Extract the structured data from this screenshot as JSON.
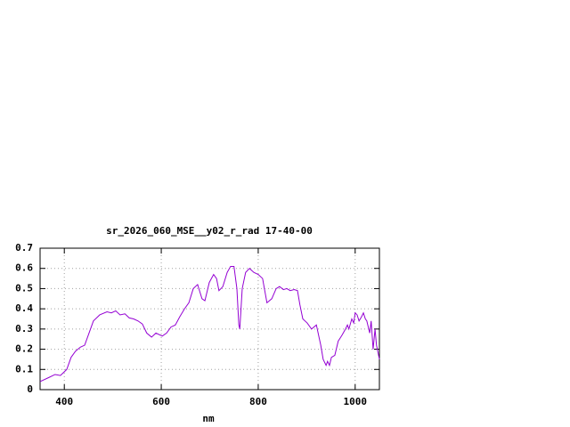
{
  "chart_data": {
    "type": "line",
    "title": "sr_2026_060_MSE__y02_r_rad 17-40-00",
    "x_label": "nm",
    "x": [
      350,
      368,
      381,
      392,
      405,
      414,
      423,
      433,
      442,
      451,
      460,
      473,
      488,
      497,
      506,
      515,
      525,
      534,
      543,
      552,
      561,
      570,
      580,
      589,
      602,
      611,
      620,
      629,
      638,
      648,
      657,
      666,
      675,
      684,
      690,
      699,
      708,
      714,
      719,
      727,
      736,
      743,
      750,
      756,
      760,
      762,
      767,
      774,
      782,
      791,
      800,
      809,
      818,
      828,
      837,
      844,
      852,
      859,
      866,
      874,
      881,
      886,
      892,
      901,
      910,
      920,
      929,
      934,
      940,
      943,
      947,
      951,
      958,
      965,
      973,
      980,
      984,
      987,
      993,
      997,
      1000,
      1004,
      1008,
      1013,
      1017,
      1021,
      1024,
      1030,
      1033,
      1037,
      1041,
      1044,
      1050
    ],
    "series": [
      {
        "color": "#9400d3",
        "values": [
          0.04,
          0.06,
          0.075,
          0.07,
          0.1,
          0.16,
          0.19,
          0.21,
          0.22,
          0.28,
          0.34,
          0.37,
          0.385,
          0.38,
          0.39,
          0.37,
          0.375,
          0.355,
          0.35,
          0.34,
          0.325,
          0.28,
          0.26,
          0.28,
          0.265,
          0.28,
          0.31,
          0.32,
          0.36,
          0.4,
          0.43,
          0.5,
          0.52,
          0.45,
          0.44,
          0.53,
          0.57,
          0.55,
          0.49,
          0.51,
          0.58,
          0.61,
          0.61,
          0.5,
          0.32,
          0.3,
          0.5,
          0.58,
          0.6,
          0.58,
          0.57,
          0.55,
          0.43,
          0.45,
          0.5,
          0.51,
          0.495,
          0.5,
          0.49,
          0.495,
          0.49,
          0.42,
          0.35,
          0.33,
          0.3,
          0.32,
          0.22,
          0.15,
          0.12,
          0.14,
          0.12,
          0.16,
          0.17,
          0.24,
          0.27,
          0.3,
          0.32,
          0.3,
          0.35,
          0.33,
          0.38,
          0.37,
          0.34,
          0.36,
          0.38,
          0.35,
          0.34,
          0.28,
          0.34,
          0.2,
          0.3,
          0.22,
          0.15
        ]
      }
    ],
    "xlim": [
      350,
      1050
    ],
    "xticks": [
      400,
      600,
      800,
      1000
    ],
    "ylim": [
      0,
      0.7
    ],
    "yticks": [
      0,
      0.1,
      0.2,
      0.3,
      0.4,
      0.5,
      0.6,
      0.7
    ],
    "grid": true
  }
}
